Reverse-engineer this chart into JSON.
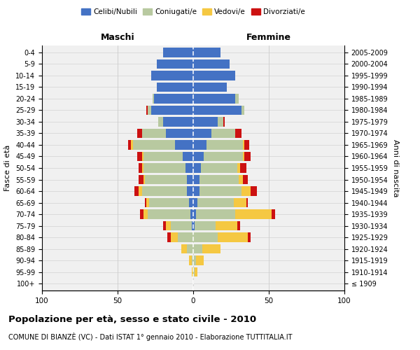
{
  "age_groups": [
    "100+",
    "95-99",
    "90-94",
    "85-89",
    "80-84",
    "75-79",
    "70-74",
    "65-69",
    "60-64",
    "55-59",
    "50-54",
    "45-49",
    "40-44",
    "35-39",
    "30-34",
    "25-29",
    "20-24",
    "15-19",
    "10-14",
    "5-9",
    "0-4"
  ],
  "birth_years": [
    "≤ 1909",
    "1910-1914",
    "1915-1919",
    "1920-1924",
    "1925-1929",
    "1930-1934",
    "1935-1939",
    "1940-1944",
    "1945-1949",
    "1950-1954",
    "1955-1959",
    "1960-1964",
    "1965-1969",
    "1970-1974",
    "1975-1979",
    "1980-1984",
    "1985-1989",
    "1990-1994",
    "1995-1999",
    "2000-2004",
    "2005-2009"
  ],
  "colors": {
    "celibi": "#4472C4",
    "coniugati": "#b8c9a0",
    "vedovi": "#f5c842",
    "divorziati": "#cc1111"
  },
  "males": {
    "celibi": [
      0,
      0,
      0,
      0,
      0,
      1,
      2,
      3,
      4,
      4,
      5,
      7,
      12,
      18,
      20,
      28,
      26,
      24,
      28,
      24,
      20
    ],
    "coniugati": [
      0,
      0,
      1,
      4,
      10,
      14,
      28,
      26,
      30,
      28,
      28,
      26,
      28,
      16,
      3,
      2,
      1,
      0,
      0,
      0,
      0
    ],
    "vedovi": [
      0,
      1,
      2,
      4,
      5,
      3,
      3,
      2,
      2,
      1,
      1,
      1,
      1,
      0,
      0,
      0,
      0,
      0,
      0,
      0,
      0
    ],
    "divorziati": [
      0,
      0,
      0,
      0,
      2,
      2,
      2,
      1,
      3,
      3,
      2,
      3,
      2,
      3,
      0,
      1,
      0,
      0,
      0,
      0,
      0
    ]
  },
  "females": {
    "nubili": [
      0,
      0,
      0,
      0,
      0,
      1,
      2,
      3,
      4,
      4,
      5,
      7,
      9,
      12,
      16,
      32,
      28,
      22,
      28,
      24,
      18
    ],
    "coniugate": [
      0,
      1,
      2,
      6,
      16,
      14,
      26,
      24,
      28,
      26,
      24,
      26,
      24,
      16,
      4,
      2,
      2,
      0,
      0,
      0,
      0
    ],
    "vedove": [
      0,
      2,
      5,
      12,
      20,
      14,
      24,
      8,
      6,
      3,
      2,
      1,
      1,
      0,
      0,
      0,
      0,
      0,
      0,
      0,
      0
    ],
    "divorziate": [
      0,
      0,
      0,
      0,
      2,
      2,
      2,
      1,
      4,
      3,
      4,
      4,
      3,
      4,
      1,
      0,
      0,
      0,
      0,
      0,
      0
    ]
  },
  "title_main": "Popolazione per età, sesso e stato civile - 2010",
  "title_sub": "COMUNE DI BIANZÈ (VC) - Dati ISTAT 1° gennaio 2010 - Elaborazione TUTTITALIA.IT",
  "xlabel_left": "Maschi",
  "xlabel_right": "Femmine",
  "ylabel_left": "Fasce di età",
  "ylabel_right": "Anni di nascita",
  "xlim": 100,
  "legend_labels": [
    "Celibi/Nubili",
    "Coniugati/e",
    "Vedovi/e",
    "Divorziati/e"
  ],
  "bg_color": "#f0f0f0",
  "grid_color": "#cccccc"
}
